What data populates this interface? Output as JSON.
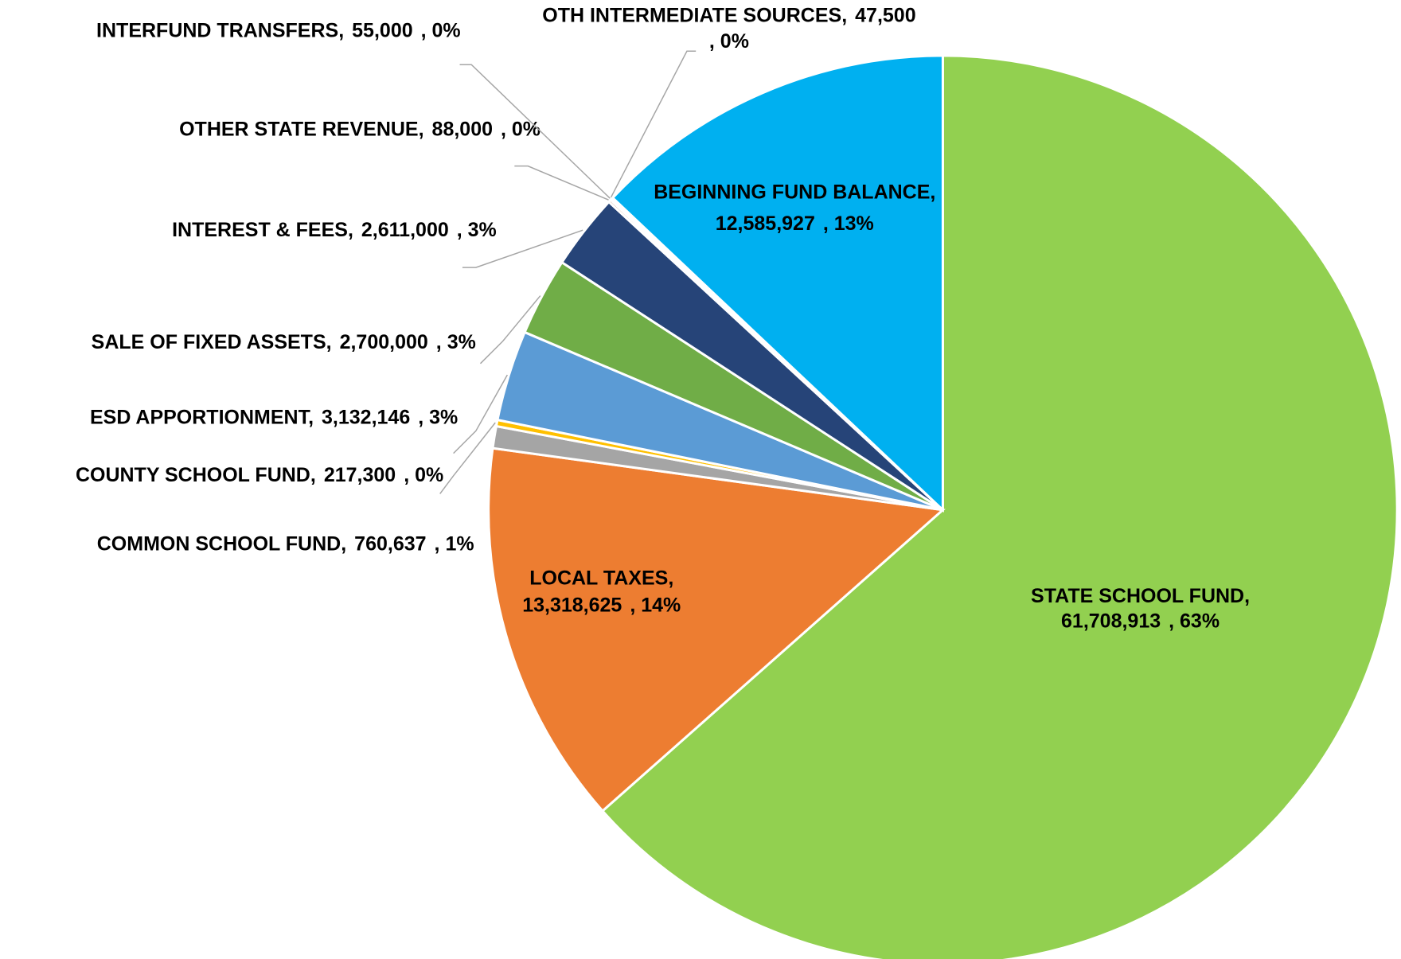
{
  "chart_data": {
    "type": "pie",
    "categories": [
      "STATE SCHOOL FUND,",
      "LOCAL TAXES,",
      "COMMON SCHOOL FUND,",
      "COUNTY SCHOOL FUND,",
      "ESD APPORTIONMENT,",
      "SALE OF FIXED ASSETS,",
      "INTEREST & FEES,",
      "OTHER STATE REVENUE,",
      "INTERFUND TRANSFERS,",
      "OTH INTERMEDIATE SOURCES,",
      "BEGINNING FUND BALANCE,"
    ],
    "values": [
      61708913,
      13318625,
      760637,
      217300,
      3132146,
      2700000,
      2611000,
      88000,
      55000,
      47500,
      12585927
    ],
    "value_labels": [
      "61,708,913",
      "13,318,625",
      "760,637",
      "217,300",
      "3,132,146",
      "2,700,000",
      "2,611,000",
      "88,000",
      "55,000",
      "47,500",
      "12,585,927"
    ],
    "percent_labels": [
      ", 63%",
      ", 14%",
      ", 1%",
      ", 0%",
      ", 3%",
      ", 3%",
      ", 3%",
      ", 0%",
      ", 0%",
      ", 0%",
      ", 13%"
    ],
    "colors": [
      "#92d050",
      "#ed7d31",
      "#a5a5a5",
      "#ffc000",
      "#5b9bd5",
      "#70ad47",
      "#264478",
      "#9e480e",
      "#636363",
      "#997300",
      "#00b0f0"
    ],
    "start_angle": 0,
    "direction": "clockwise"
  }
}
